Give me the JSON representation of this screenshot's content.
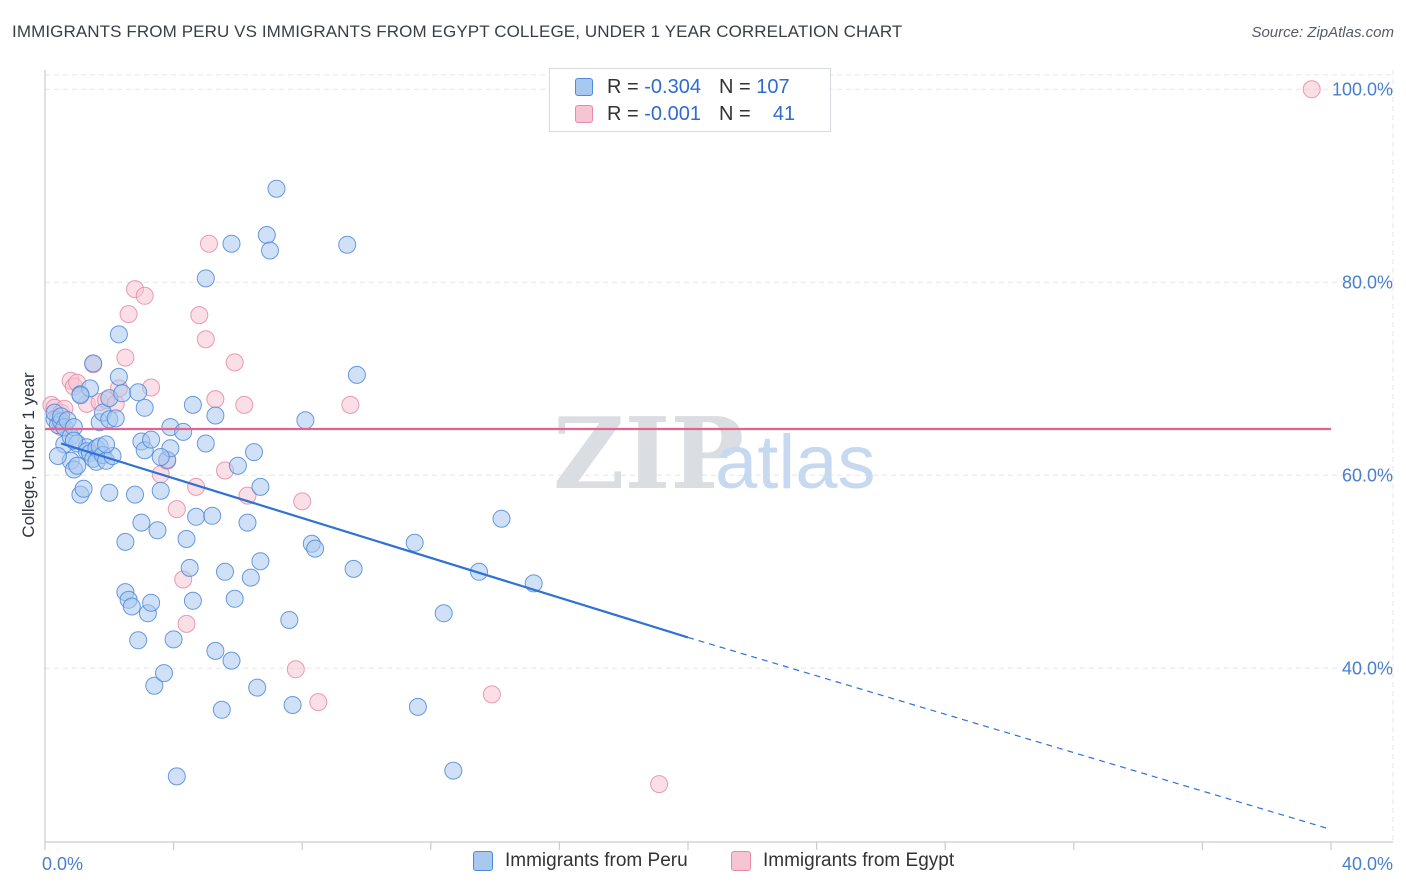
{
  "title": "IMMIGRANTS FROM PERU VS IMMIGRANTS FROM EGYPT COLLEGE, UNDER 1 YEAR CORRELATION CHART",
  "source": "Source: ZipAtlas.com",
  "watermark": {
    "zip": "ZIP",
    "atlas": "atlas"
  },
  "legend_top": {
    "rows": [
      {
        "r_label": "R =",
        "r_value": "-0.304",
        "n_label": "N =",
        "n_value": "107"
      },
      {
        "r_label": "R =",
        "r_value": "-0.001",
        "n_label": "N =",
        "n_value": "41"
      }
    ]
  },
  "colors": {
    "peru_fill": "#a9c8f0",
    "peru_stroke": "#4d8ad8",
    "peru_line": "#2f72d4",
    "egypt_fill": "#f7c4d4",
    "egypt_stroke": "#e58aa8",
    "egypt_line": "#e0648e",
    "grid": "#e4e6ea",
    "axis": "#c9ccd2",
    "tick_text": "#4a7fd0"
  },
  "chart_data": {
    "type": "scatter",
    "title": "IMMIGRANTS FROM PERU VS IMMIGRANTS FROM EGYPT COLLEGE, UNDER 1 YEAR CORRELATION CHART",
    "xlabel": "",
    "ylabel": "College, Under 1 year",
    "xlim": [
      0,
      40
    ],
    "ylim": [
      22,
      102
    ],
    "x_tick_labels": [
      "0.0%",
      "40.0%"
    ],
    "y_ticks": [
      40,
      60,
      80,
      100
    ],
    "y_tick_labels": [
      "40.0%",
      "60.0%",
      "80.0%",
      "100.0%"
    ],
    "grid": true,
    "legend_position": "top-center",
    "series": [
      {
        "name": "Immigrants from Peru",
        "R": -0.304,
        "N": 107,
        "trend": {
          "x0": 0.5,
          "y0": 63.3,
          "x1": 20.0,
          "y1": 43.2,
          "dash_to_x": 40.0,
          "dash_to_y": 23.3
        },
        "points": [
          [
            0.3,
            65.8
          ],
          [
            0.3,
            66.5
          ],
          [
            0.4,
            65.2
          ],
          [
            0.5,
            65.6
          ],
          [
            0.5,
            66.1
          ],
          [
            0.6,
            65.0
          ],
          [
            0.6,
            63.2
          ],
          [
            0.7,
            65.7
          ],
          [
            0.8,
            61.5
          ],
          [
            0.8,
            64.0
          ],
          [
            0.9,
            65.0
          ],
          [
            0.9,
            60.6
          ],
          [
            1.0,
            63.3
          ],
          [
            1.0,
            61.0
          ],
          [
            1.1,
            68.4
          ],
          [
            1.1,
            58.0
          ],
          [
            1.2,
            58.6
          ],
          [
            1.3,
            62.9
          ],
          [
            1.3,
            62.5
          ],
          [
            1.4,
            62.3
          ],
          [
            1.4,
            69.0
          ],
          [
            1.5,
            61.7
          ],
          [
            1.6,
            62.8
          ],
          [
            1.6,
            61.4
          ],
          [
            1.7,
            63.0
          ],
          [
            1.7,
            65.5
          ],
          [
            1.8,
            62.1
          ],
          [
            1.8,
            66.5
          ],
          [
            1.9,
            61.5
          ],
          [
            2.0,
            65.8
          ],
          [
            2.0,
            68.0
          ],
          [
            2.1,
            62.0
          ],
          [
            2.2,
            65.9
          ],
          [
            2.3,
            74.6
          ],
          [
            2.3,
            70.2
          ],
          [
            2.4,
            68.5
          ],
          [
            2.5,
            47.9
          ],
          [
            2.5,
            53.1
          ],
          [
            2.6,
            47.1
          ],
          [
            2.7,
            46.4
          ],
          [
            2.8,
            58.0
          ],
          [
            2.9,
            42.9
          ],
          [
            3.0,
            63.5
          ],
          [
            3.0,
            55.1
          ],
          [
            3.1,
            62.6
          ],
          [
            3.2,
            45.7
          ],
          [
            3.3,
            46.8
          ],
          [
            3.3,
            63.7
          ],
          [
            3.4,
            38.2
          ],
          [
            3.5,
            54.3
          ],
          [
            3.6,
            58.4
          ],
          [
            3.7,
            39.5
          ],
          [
            3.8,
            61.6
          ],
          [
            3.9,
            65.0
          ],
          [
            4.0,
            43.0
          ],
          [
            4.1,
            28.8
          ],
          [
            4.3,
            64.5
          ],
          [
            4.4,
            53.4
          ],
          [
            4.5,
            50.4
          ],
          [
            4.6,
            47.0
          ],
          [
            4.7,
            55.7
          ],
          [
            5.0,
            63.3
          ],
          [
            5.0,
            80.4
          ],
          [
            5.2,
            55.8
          ],
          [
            5.3,
            41.8
          ],
          [
            5.5,
            35.7
          ],
          [
            5.6,
            50.0
          ],
          [
            5.8,
            40.8
          ],
          [
            5.9,
            47.2
          ],
          [
            6.0,
            61.0
          ],
          [
            6.3,
            55.1
          ],
          [
            6.4,
            49.4
          ],
          [
            6.5,
            62.4
          ],
          [
            6.6,
            38.0
          ],
          [
            6.7,
            51.1
          ],
          [
            6.9,
            84.9
          ],
          [
            7.0,
            83.3
          ],
          [
            7.2,
            89.7
          ],
          [
            7.6,
            45.0
          ],
          [
            7.7,
            36.2
          ],
          [
            8.3,
            52.9
          ],
          [
            8.4,
            52.4
          ],
          [
            9.7,
            70.4
          ],
          [
            9.6,
            50.3
          ],
          [
            11.5,
            53.0
          ],
          [
            11.6,
            36.0
          ],
          [
            12.4,
            45.7
          ],
          [
            12.7,
            29.4
          ],
          [
            13.5,
            50.0
          ],
          [
            15.2,
            48.8
          ],
          [
            1.5,
            71.6
          ],
          [
            3.1,
            67.0
          ],
          [
            5.3,
            66.2
          ],
          [
            9.4,
            83.9
          ],
          [
            2.9,
            68.6
          ],
          [
            1.9,
            63.2
          ],
          [
            3.9,
            62.8
          ],
          [
            4.6,
            67.3
          ],
          [
            5.8,
            84.0
          ],
          [
            8.1,
            65.7
          ],
          [
            1.1,
            68.3
          ],
          [
            2.0,
            58.2
          ],
          [
            6.7,
            58.8
          ],
          [
            0.9,
            63.6
          ],
          [
            14.2,
            55.5
          ],
          [
            3.6,
            61.9
          ],
          [
            0.4,
            62.0
          ]
        ]
      },
      {
        "name": "Immigrants from Egypt",
        "R": -0.001,
        "N": 41,
        "trend": {
          "x0": 0.0,
          "y0": 64.8,
          "x1": 40.0,
          "y1": 64.8
        },
        "points": [
          [
            0.2,
            67.3
          ],
          [
            0.3,
            67.0
          ],
          [
            0.4,
            65.8
          ],
          [
            0.5,
            66.5
          ],
          [
            0.5,
            65.0
          ],
          [
            0.6,
            66.9
          ],
          [
            0.8,
            69.8
          ],
          [
            0.9,
            69.2
          ],
          [
            1.0,
            69.6
          ],
          [
            1.3,
            67.4
          ],
          [
            1.5,
            71.5
          ],
          [
            1.7,
            67.6
          ],
          [
            1.9,
            67.8
          ],
          [
            2.2,
            67.4
          ],
          [
            2.3,
            69.0
          ],
          [
            2.5,
            72.2
          ],
          [
            2.6,
            76.7
          ],
          [
            2.8,
            79.3
          ],
          [
            3.1,
            78.6
          ],
          [
            3.3,
            69.1
          ],
          [
            3.6,
            60.1
          ],
          [
            3.8,
            61.5
          ],
          [
            4.1,
            56.5
          ],
          [
            4.3,
            49.2
          ],
          [
            4.4,
            44.6
          ],
          [
            4.7,
            58.8
          ],
          [
            4.8,
            76.6
          ],
          [
            5.0,
            74.1
          ],
          [
            5.1,
            84.0
          ],
          [
            5.3,
            67.9
          ],
          [
            5.6,
            60.5
          ],
          [
            5.9,
            71.7
          ],
          [
            6.2,
            67.3
          ],
          [
            6.3,
            57.9
          ],
          [
            7.8,
            39.9
          ],
          [
            8.0,
            57.3
          ],
          [
            8.5,
            36.5
          ],
          [
            9.5,
            67.3
          ],
          [
            13.9,
            37.3
          ],
          [
            19.1,
            28.0
          ],
          [
            39.4,
            100.0
          ]
        ]
      }
    ]
  },
  "bottom_legend": [
    {
      "label": "Immigrants from Peru"
    },
    {
      "label": "Immigrants from Egypt"
    }
  ]
}
